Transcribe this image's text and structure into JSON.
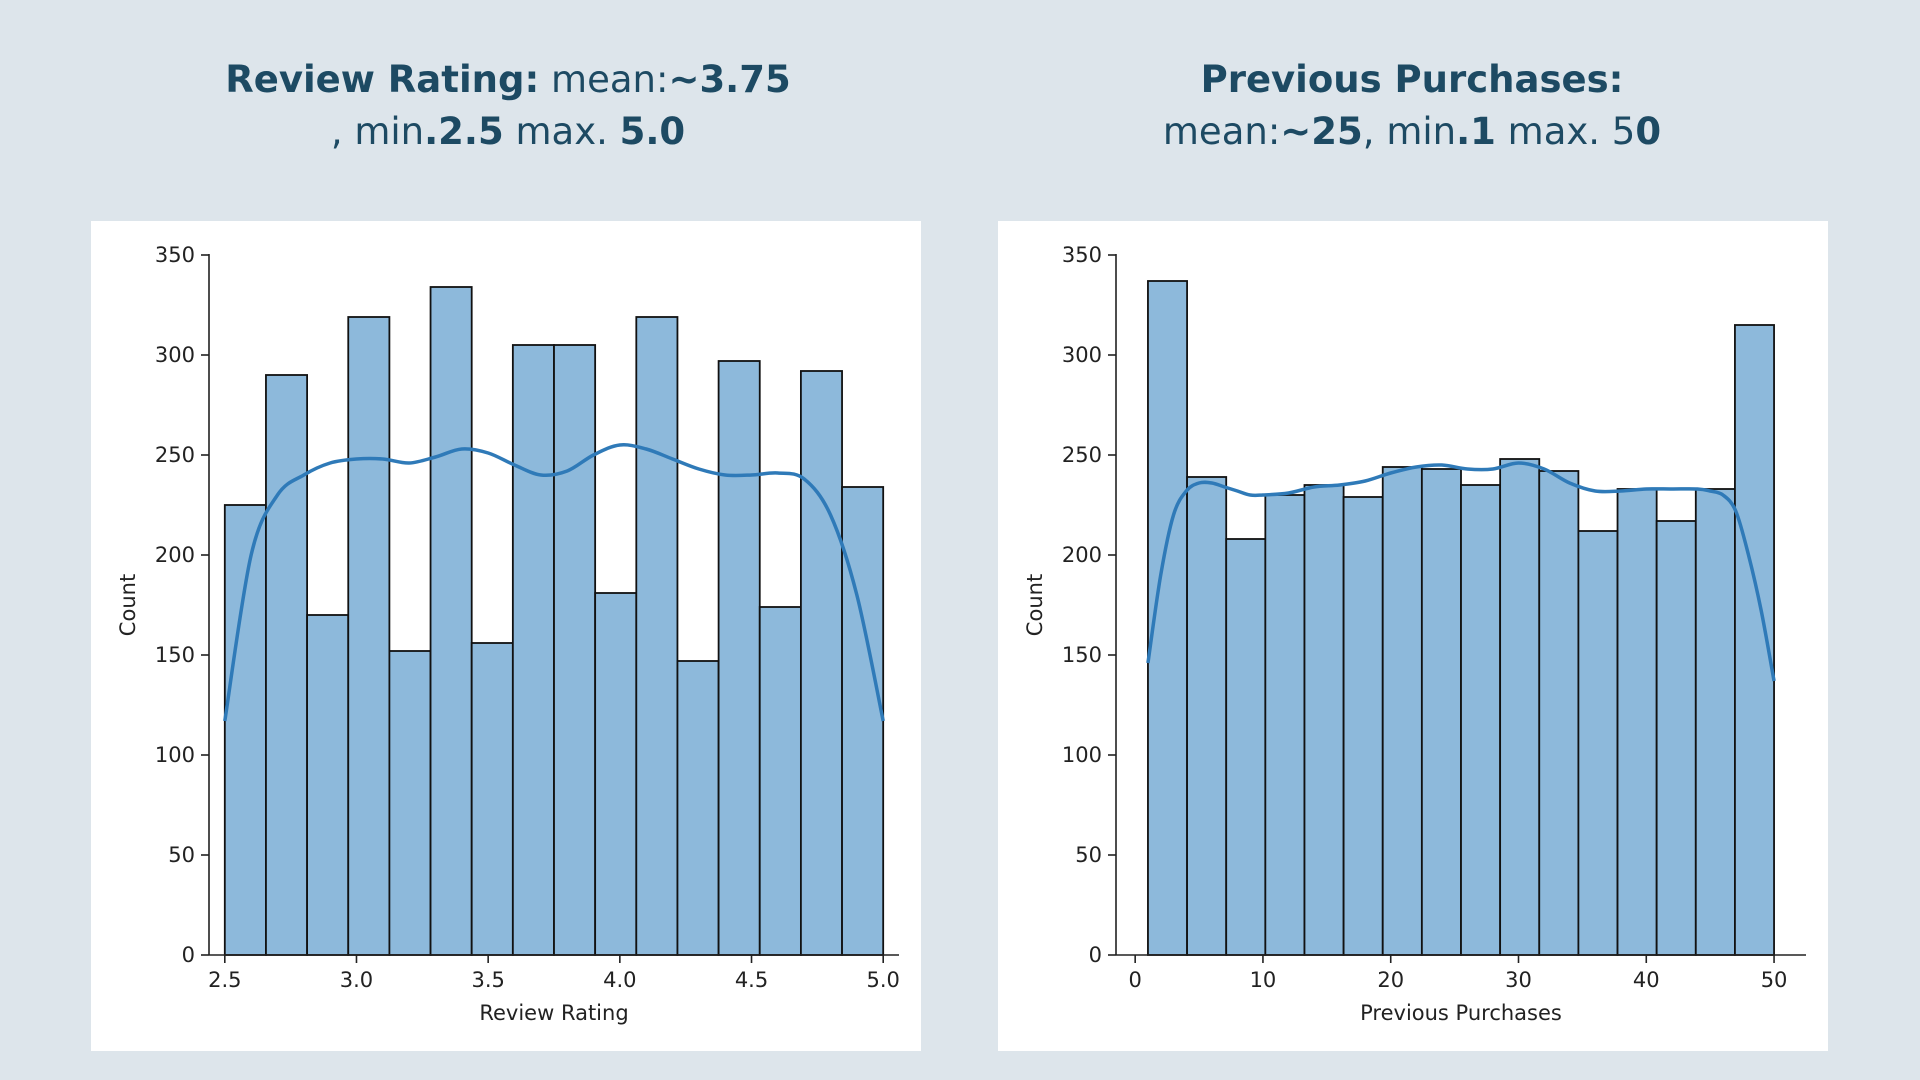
{
  "headlines": {
    "left": {
      "label": "Review Rating:",
      "mean_prefix": " mean:",
      "mean_value": "~3.75",
      "min_prefix": ", min",
      "min_value": ".2.5",
      "max_prefix": " max. ",
      "max_value": "5.0"
    },
    "right": {
      "label": "Previous Purchases:",
      "mean_prefix": "mean:",
      "mean_value": "~25",
      "min_prefix": ", min",
      "min_value": ".1",
      "max_prefix": " max. 5",
      "max_value": "0"
    }
  },
  "colors": {
    "background": "#dde5eb",
    "headline_text": "#1d4a63",
    "bar_fill": "#8db9db",
    "bar_edge": "#111111",
    "kde_line": "#2f7ab8"
  },
  "chart_data": [
    {
      "type": "bar",
      "subtype": "histogram-with-kde",
      "title": "",
      "xlabel": "Review Rating",
      "ylabel": "Count",
      "xlim": [
        2.44,
        5.06
      ],
      "ylim": [
        0,
        350
      ],
      "xticks": [
        2.5,
        3.0,
        3.5,
        4.0,
        4.5,
        5.0
      ],
      "xtick_labels": [
        "2.5",
        "3.0",
        "3.5",
        "4.0",
        "4.5",
        "5.0"
      ],
      "yticks": [
        0,
        50,
        100,
        150,
        200,
        250,
        300,
        350
      ],
      "ytick_labels": [
        "0",
        "50",
        "100",
        "150",
        "200",
        "250",
        "300",
        "350"
      ],
      "bin_edges": [
        2.5,
        2.65625,
        2.8125,
        2.96875,
        3.125,
        3.28125,
        3.4375,
        3.59375,
        3.75,
        3.90625,
        4.0625,
        4.21875,
        4.375,
        4.53125,
        4.6875,
        4.84375,
        5.0
      ],
      "values": [
        225,
        290,
        170,
        319,
        152,
        334,
        156,
        305,
        305,
        181,
        319,
        147,
        297,
        174,
        292,
        234
      ],
      "kde": {
        "x": [
          2.5,
          2.6,
          2.7,
          2.8,
          2.9,
          3.0,
          3.1,
          3.2,
          3.3,
          3.4,
          3.5,
          3.6,
          3.7,
          3.8,
          3.9,
          4.0,
          4.1,
          4.2,
          4.3,
          4.4,
          4.5,
          4.6,
          4.7,
          4.8,
          4.9,
          5.0
        ],
        "y": [
          117,
          200,
          230,
          240,
          246,
          248,
          248,
          246,
          249,
          253,
          251,
          245,
          240,
          242,
          250,
          255,
          253,
          248,
          243,
          240,
          240,
          241,
          238,
          220,
          180,
          117
        ]
      }
    },
    {
      "type": "bar",
      "subtype": "histogram-with-kde",
      "title": "",
      "xlabel": "Previous Purchases",
      "ylabel": "Count",
      "xlim": [
        -1.5,
        52.5
      ],
      "ylim": [
        0,
        350
      ],
      "xticks": [
        0,
        10,
        20,
        30,
        40,
        50
      ],
      "xtick_labels": [
        "0",
        "10",
        "20",
        "30",
        "40",
        "50"
      ],
      "yticks": [
        0,
        50,
        100,
        150,
        200,
        250,
        300,
        350
      ],
      "ytick_labels": [
        "0",
        "50",
        "100",
        "150",
        "200",
        "250",
        "300",
        "350"
      ],
      "bin_edges": [
        1,
        4.0625,
        7.125,
        10.1875,
        13.25,
        16.3125,
        19.375,
        22.4375,
        25.5,
        28.5625,
        31.625,
        34.6875,
        37.75,
        40.8125,
        43.875,
        46.9375,
        50
      ],
      "values": [
        337,
        239,
        208,
        230,
        235,
        229,
        244,
        243,
        235,
        248,
        242,
        212,
        233,
        217,
        233,
        315
      ],
      "kde": {
        "x": [
          1,
          2,
          3,
          4,
          5,
          6,
          7,
          8,
          9,
          10,
          12,
          14,
          16,
          18,
          20,
          22,
          24,
          26,
          28,
          30,
          32,
          34,
          36,
          38,
          40,
          42,
          44,
          45,
          46,
          47,
          48,
          49,
          50
        ],
        "y": [
          146,
          190,
          220,
          232,
          236,
          236,
          234,
          232,
          230,
          230,
          231,
          234,
          235,
          237,
          241,
          244,
          245,
          243,
          243,
          246,
          243,
          236,
          232,
          232,
          233,
          233,
          233,
          232,
          230,
          222,
          200,
          172,
          137
        ]
      }
    }
  ]
}
